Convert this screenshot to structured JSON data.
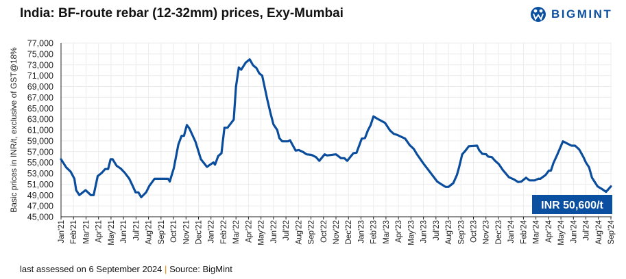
{
  "title": "India: BF-route rebar (12-32mm) prices, Exy-Mumbai",
  "logo_text": "BIGMINT",
  "footer": {
    "assessed": "last assessed on 6 September 2024",
    "separator": "|",
    "source": "Source: BigMint"
  },
  "chart_data": {
    "type": "line",
    "title": "India: BF-route rebar (12-32mm) prices, Exy-Mumbai",
    "ylabel": "Basic prices in INR/t,  exclusive of GST@18%",
    "xlabel": "",
    "ylim": [
      45000,
      77000
    ],
    "yticks": [
      "45,000",
      "47,000",
      "49,000",
      "51,000",
      "53,000",
      "55,000",
      "57,000",
      "59,000",
      "61,000",
      "63,000",
      "65,000",
      "67,000",
      "69,000",
      "71,000",
      "73,000",
      "75,000",
      "77,000"
    ],
    "xticks": [
      "Jan'21",
      "Feb'21",
      "Mar'21",
      "Apr'21",
      "May'21",
      "Jun'21",
      "Jul'21",
      "Aug'21",
      "Sep'21",
      "Oct'21",
      "Nov'21",
      "Dec'21",
      "Jan'22",
      "Feb'22",
      "Mar'22",
      "Apr'22",
      "May'22",
      "Jun'22",
      "Jul'22",
      "Aug'22",
      "Sep'22",
      "Oct'22",
      "Nov'22",
      "Dec'22",
      "Jan'23",
      "Feb'23",
      "Mar'23",
      "Apr'23",
      "May'23",
      "Jun'23",
      "Jul'23",
      "Aug'23",
      "Sep'23",
      "Oct'23",
      "Nov'23",
      "Dec'23",
      "Jan'24",
      "Feb'24",
      "Mar'24",
      "Apr'24",
      "May'24",
      "Jun'24",
      "Jul'24",
      "Aug'24",
      "Sep'24"
    ],
    "grid": true,
    "line_color": "#0a4d9c",
    "annotation": {
      "text": "INR 50,600/t",
      "bg": "#0b4fa0",
      "color": "#ffffff"
    },
    "series": [
      {
        "points": [
          [
            "2021-01-01",
            55600
          ],
          [
            "2021-01-14",
            54100
          ],
          [
            "2021-01-25",
            53300
          ],
          [
            "2021-02-03",
            52000
          ],
          [
            "2021-02-07",
            49900
          ],
          [
            "2021-02-14",
            49000
          ],
          [
            "2021-02-28",
            49900
          ],
          [
            "2021-03-13",
            49000
          ],
          [
            "2021-03-20",
            49000
          ],
          [
            "2021-03-30",
            52500
          ],
          [
            "2021-04-09",
            53100
          ],
          [
            "2021-04-17",
            53800
          ],
          [
            "2021-04-24",
            53800
          ],
          [
            "2021-04-30",
            55600
          ],
          [
            "2021-05-05",
            55600
          ],
          [
            "2021-05-15",
            54400
          ],
          [
            "2021-05-25",
            53900
          ],
          [
            "2021-06-04",
            53100
          ],
          [
            "2021-06-15",
            52000
          ],
          [
            "2021-06-23",
            50700
          ],
          [
            "2021-06-30",
            49500
          ],
          [
            "2021-07-07",
            49500
          ],
          [
            "2021-07-14",
            48600
          ],
          [
            "2021-07-26",
            49500
          ],
          [
            "2021-08-03",
            50700
          ],
          [
            "2021-08-16",
            52000
          ],
          [
            "2021-08-24",
            52000
          ],
          [
            "2021-09-18",
            52000
          ],
          [
            "2021-09-22",
            51500
          ],
          [
            "2021-10-02",
            54000
          ],
          [
            "2021-10-13",
            58300
          ],
          [
            "2021-10-21",
            59900
          ],
          [
            "2021-10-27",
            59900
          ],
          [
            "2021-11-03",
            61900
          ],
          [
            "2021-11-09",
            61300
          ],
          [
            "2021-11-24",
            58800
          ],
          [
            "2021-12-07",
            55600
          ],
          [
            "2021-12-22",
            54200
          ],
          [
            "2022-01-07",
            55000
          ],
          [
            "2022-01-11",
            54600
          ],
          [
            "2022-01-19",
            56200
          ],
          [
            "2022-01-27",
            56700
          ],
          [
            "2022-02-03",
            61400
          ],
          [
            "2022-02-10",
            61400
          ],
          [
            "2022-02-24",
            62900
          ],
          [
            "2022-03-01",
            69000
          ],
          [
            "2022-03-08",
            72500
          ],
          [
            "2022-03-14",
            72100
          ],
          [
            "2022-03-25",
            73400
          ],
          [
            "2022-04-04",
            74000
          ],
          [
            "2022-04-12",
            72900
          ],
          [
            "2022-04-20",
            72400
          ],
          [
            "2022-04-27",
            71400
          ],
          [
            "2022-05-04",
            71000
          ],
          [
            "2022-05-17",
            66500
          ],
          [
            "2022-05-25",
            64000
          ],
          [
            "2022-06-01",
            62000
          ],
          [
            "2022-06-10",
            61000
          ],
          [
            "2022-06-15",
            59500
          ],
          [
            "2022-06-22",
            58900
          ],
          [
            "2022-07-06",
            58900
          ],
          [
            "2022-07-11",
            59100
          ],
          [
            "2022-07-25",
            57200
          ],
          [
            "2022-08-02",
            57300
          ],
          [
            "2022-08-13",
            56900
          ],
          [
            "2022-08-21",
            56500
          ],
          [
            "2022-09-02",
            56400
          ],
          [
            "2022-09-13",
            56000
          ],
          [
            "2022-09-21",
            55300
          ],
          [
            "2022-10-04",
            56500
          ],
          [
            "2022-10-10",
            56300
          ],
          [
            "2022-11-01",
            56500
          ],
          [
            "2022-11-13",
            55800
          ],
          [
            "2022-11-21",
            55800
          ],
          [
            "2022-11-28",
            55300
          ],
          [
            "2022-12-13",
            56700
          ],
          [
            "2022-12-21",
            56800
          ],
          [
            "2023-01-03",
            59400
          ],
          [
            "2023-01-11",
            59500
          ],
          [
            "2023-01-18",
            60900
          ],
          [
            "2023-01-25",
            61900
          ],
          [
            "2023-02-01",
            63500
          ],
          [
            "2023-02-11",
            63000
          ],
          [
            "2023-02-27",
            62300
          ],
          [
            "2023-03-11",
            60900
          ],
          [
            "2023-03-20",
            60300
          ],
          [
            "2023-03-28",
            60100
          ],
          [
            "2023-04-17",
            59400
          ],
          [
            "2023-04-28",
            58200
          ],
          [
            "2023-05-08",
            57500
          ],
          [
            "2023-05-16",
            56500
          ],
          [
            "2023-06-01",
            54800
          ],
          [
            "2023-06-17",
            53200
          ],
          [
            "2023-07-04",
            51500
          ],
          [
            "2023-07-12",
            51100
          ],
          [
            "2023-07-25",
            50500
          ],
          [
            "2023-08-01",
            50500
          ],
          [
            "2023-08-13",
            51200
          ],
          [
            "2023-08-22",
            52700
          ],
          [
            "2023-08-27",
            54000
          ],
          [
            "2023-09-04",
            56500
          ],
          [
            "2023-09-11",
            57100
          ],
          [
            "2023-09-20",
            58000
          ],
          [
            "2023-10-10",
            58100
          ],
          [
            "2023-10-15",
            57300
          ],
          [
            "2023-10-23",
            56600
          ],
          [
            "2023-11-02",
            56500
          ],
          [
            "2023-11-06",
            56100
          ],
          [
            "2023-11-15",
            56000
          ],
          [
            "2023-11-23",
            55300
          ],
          [
            "2023-12-02",
            54700
          ],
          [
            "2023-12-12",
            53600
          ],
          [
            "2023-12-27",
            52300
          ],
          [
            "2024-01-08",
            51900
          ],
          [
            "2024-01-19",
            51400
          ],
          [
            "2024-01-27",
            51500
          ],
          [
            "2024-02-07",
            52200
          ],
          [
            "2024-02-15",
            51700
          ],
          [
            "2024-02-27",
            51700
          ],
          [
            "2024-03-07",
            52000
          ],
          [
            "2024-03-12",
            52000
          ],
          [
            "2024-03-25",
            52700
          ],
          [
            "2024-04-02",
            53500
          ],
          [
            "2024-04-07",
            53500
          ],
          [
            "2024-04-13",
            54900
          ],
          [
            "2024-04-22",
            56400
          ],
          [
            "2024-05-06",
            58900
          ],
          [
            "2024-05-14",
            58600
          ],
          [
            "2024-05-27",
            58100
          ],
          [
            "2024-06-05",
            58100
          ],
          [
            "2024-06-15",
            57400
          ],
          [
            "2024-06-25",
            56000
          ],
          [
            "2024-07-01",
            55000
          ],
          [
            "2024-07-09",
            54100
          ],
          [
            "2024-07-16",
            52200
          ],
          [
            "2024-07-30",
            50600
          ],
          [
            "2024-08-10",
            50100
          ],
          [
            "2024-08-20",
            49600
          ],
          [
            "2024-09-01",
            50600
          ]
        ]
      }
    ]
  }
}
